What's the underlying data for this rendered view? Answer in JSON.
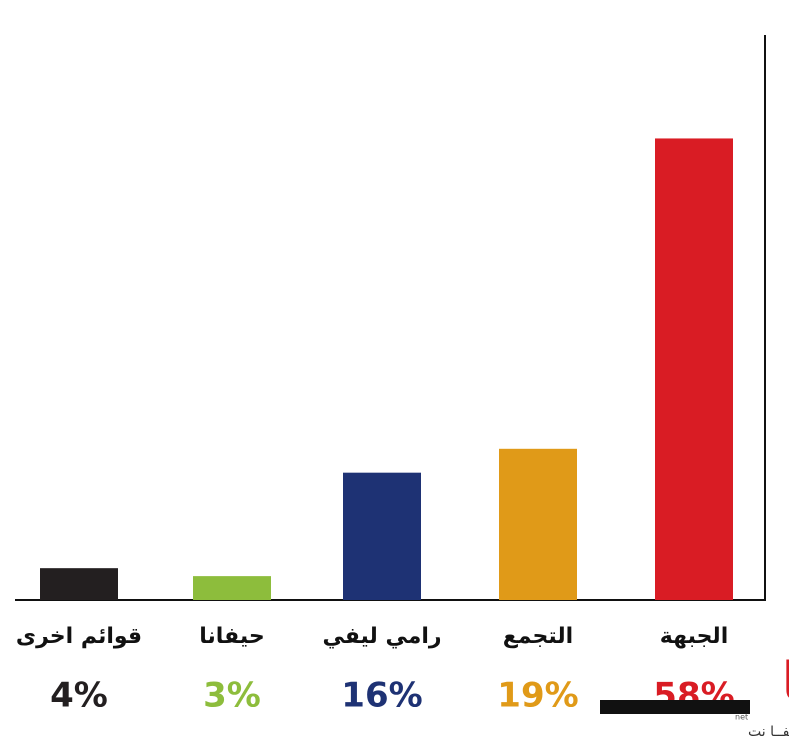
{
  "chart_data": {
    "type": "bar",
    "categories": [
      "قوائم اخرى",
      "حيفانا",
      "رامي ليفي",
      "التجمع",
      "الجبهة"
    ],
    "values": [
      4,
      3,
      16,
      19,
      58
    ],
    "value_labels": [
      "4%",
      "3%",
      "16%",
      "19%",
      "58%"
    ],
    "colors": [
      "#231f20",
      "#8dbd3c",
      "#1e3274",
      "#e09a18",
      "#d91c24"
    ],
    "ylim": [
      0,
      71
    ],
    "annotations": [
      "حيفا",
      "net",
      "صحيفة حيفــا نت"
    ]
  }
}
